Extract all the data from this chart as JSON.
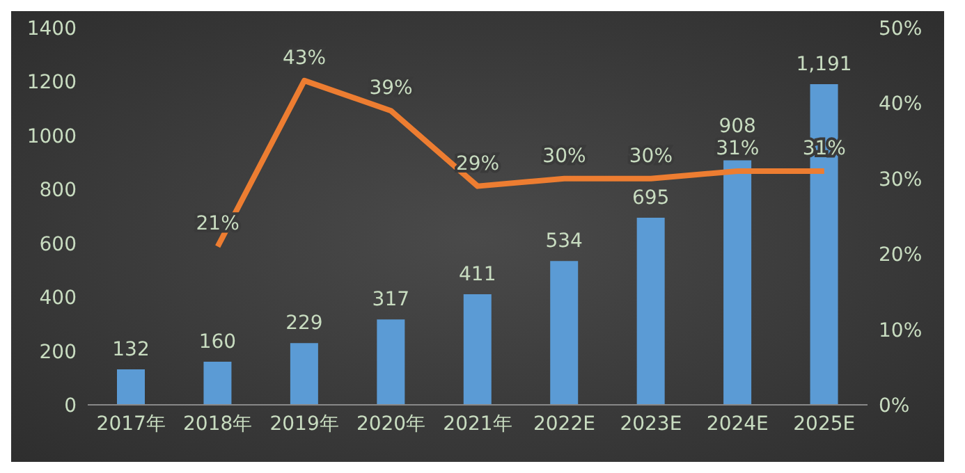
{
  "chart_data": {
    "type": "bar",
    "categories": [
      "2017年",
      "2018年",
      "2019年",
      "2020年",
      "2021年",
      "2022E",
      "2023E",
      "2024E",
      "2025E"
    ],
    "series": [
      {
        "color": "#5b9bd5",
        "values": [
          132,
          160,
          229,
          317,
          411,
          534,
          695,
          908,
          1191
        ],
        "value_labels": [
          "132",
          "160",
          "229",
          "317",
          "411",
          "534",
          "695",
          "908",
          "1,191"
        ]
      },
      {
        "type": "line",
        "axis": "y2",
        "color": "#ed7d31",
        "marker": "none",
        "values": [
          null,
          21,
          43,
          39,
          29,
          30,
          30,
          31,
          31
        ],
        "value_labels": [
          null,
          "21%",
          "43%",
          "39%",
          "29%",
          "30%",
          "30%",
          "31%",
          "31%"
        ]
      }
    ],
    "ylim": [
      0,
      1400
    ],
    "yticks": [
      0,
      200,
      400,
      600,
      800,
      1000,
      1200,
      1400
    ],
    "y2lim": [
      0,
      50
    ],
    "y2ticks": [
      {
        "value": 0,
        "label": "0%"
      },
      {
        "value": 10,
        "label": "10%"
      },
      {
        "value": 20,
        "label": "20%"
      },
      {
        "value": 30,
        "label": "30%"
      },
      {
        "value": 40,
        "label": "40%"
      },
      {
        "value": 50,
        "label": "50%"
      }
    ]
  }
}
